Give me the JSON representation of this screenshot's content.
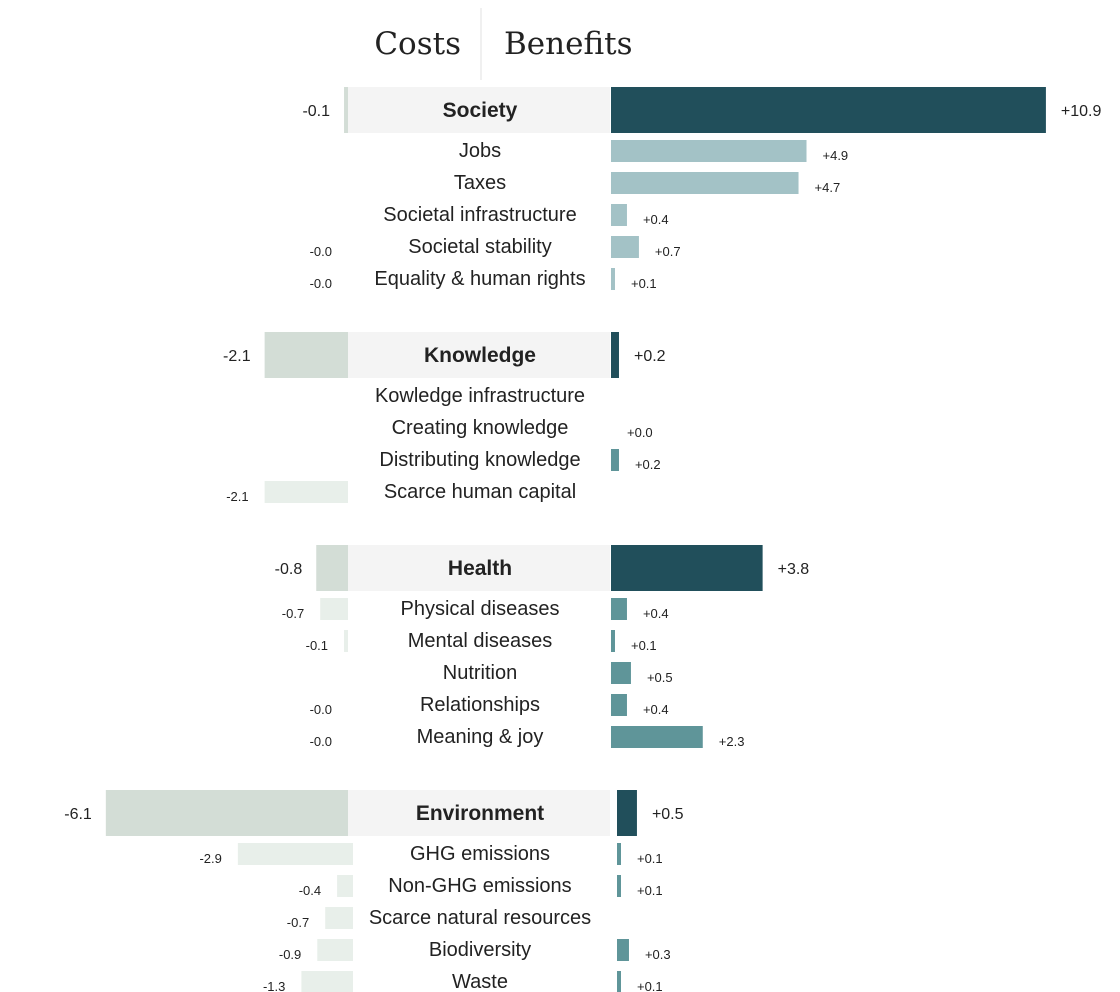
{
  "headers": {
    "costs": "Costs",
    "benefits": "Benefits"
  },
  "colors": {
    "group_benefit": "#214f5b",
    "society_item_benefit": "#a3c2c6",
    "item_benefit": "#5f9599",
    "group_cost": "#d3ddd6",
    "item_cost": "#e8efea",
    "society_item_cost": "#d3ddd6",
    "group_label_bg": "#f4f4f4",
    "divider": "#e0e0e0"
  },
  "chart_data": {
    "type": "bar",
    "orientation": "horizontal-diverging",
    "groups": [
      {
        "name": "Society",
        "cost": -0.1,
        "benefit": 10.9,
        "cost_label": "-0.1",
        "benefit_label": "+10.9",
        "items": [
          {
            "name": "Jobs",
            "cost": null,
            "benefit": 4.9,
            "cost_label": "",
            "benefit_label": "+4.9"
          },
          {
            "name": "Taxes",
            "cost": null,
            "benefit": 4.7,
            "cost_label": "",
            "benefit_label": "+4.7"
          },
          {
            "name": "Societal infrastructure",
            "cost": null,
            "benefit": 0.4,
            "cost_label": "",
            "benefit_label": "+0.4"
          },
          {
            "name": "Societal stability",
            "cost": -0.0,
            "benefit": 0.7,
            "cost_label": "-0.0",
            "benefit_label": "+0.7"
          },
          {
            "name": "Equality & human rights",
            "cost": -0.0,
            "benefit": 0.1,
            "cost_label": "-0.0",
            "benefit_label": "+0.1"
          }
        ]
      },
      {
        "name": "Knowledge",
        "cost": -2.1,
        "benefit": 0.2,
        "cost_label": "-2.1",
        "benefit_label": "+0.2",
        "items": [
          {
            "name": "Kowledge infrastructure",
            "cost": null,
            "benefit": null,
            "cost_label": "",
            "benefit_label": ""
          },
          {
            "name": "Creating knowledge",
            "cost": null,
            "benefit": 0.0,
            "cost_label": "",
            "benefit_label": "+0.0"
          },
          {
            "name": "Distributing knowledge",
            "cost": null,
            "benefit": 0.2,
            "cost_label": "",
            "benefit_label": "+0.2"
          },
          {
            "name": "Scarce human capital",
            "cost": -2.1,
            "benefit": null,
            "cost_label": "-2.1",
            "benefit_label": ""
          }
        ]
      },
      {
        "name": "Health",
        "cost": -0.8,
        "benefit": 3.8,
        "cost_label": "-0.8",
        "benefit_label": "+3.8",
        "items": [
          {
            "name": "Physical diseases",
            "cost": -0.7,
            "benefit": 0.4,
            "cost_label": "-0.7",
            "benefit_label": "+0.4"
          },
          {
            "name": "Mental diseases",
            "cost": -0.1,
            "benefit": 0.1,
            "cost_label": "-0.1",
            "benefit_label": "+0.1"
          },
          {
            "name": "Nutrition",
            "cost": null,
            "benefit": 0.5,
            "cost_label": "",
            "benefit_label": "+0.5"
          },
          {
            "name": "Relationships",
            "cost": -0.0,
            "benefit": 0.4,
            "cost_label": "-0.0",
            "benefit_label": "+0.4"
          },
          {
            "name": "Meaning & joy",
            "cost": -0.0,
            "benefit": 2.3,
            "cost_label": "-0.0",
            "benefit_label": "+2.3"
          }
        ]
      },
      {
        "name": "Environment",
        "cost": -6.1,
        "benefit": 0.5,
        "cost_label": "-6.1",
        "benefit_label": "+0.5",
        "items": [
          {
            "name": "GHG emissions",
            "cost": -2.9,
            "benefit": 0.1,
            "cost_label": "-2.9",
            "benefit_label": "+0.1"
          },
          {
            "name": "Non-GHG emissions",
            "cost": -0.4,
            "benefit": 0.1,
            "cost_label": "-0.4",
            "benefit_label": "+0.1"
          },
          {
            "name": "Scarce natural resources",
            "cost": -0.7,
            "benefit": null,
            "cost_label": "-0.7",
            "benefit_label": ""
          },
          {
            "name": "Biodiversity",
            "cost": -0.9,
            "benefit": 0.3,
            "cost_label": "-0.9",
            "benefit_label": "+0.3"
          },
          {
            "name": "Waste",
            "cost": -1.3,
            "benefit": 0.1,
            "cost_label": "-1.3",
            "benefit_label": "+0.1"
          }
        ]
      }
    ]
  }
}
